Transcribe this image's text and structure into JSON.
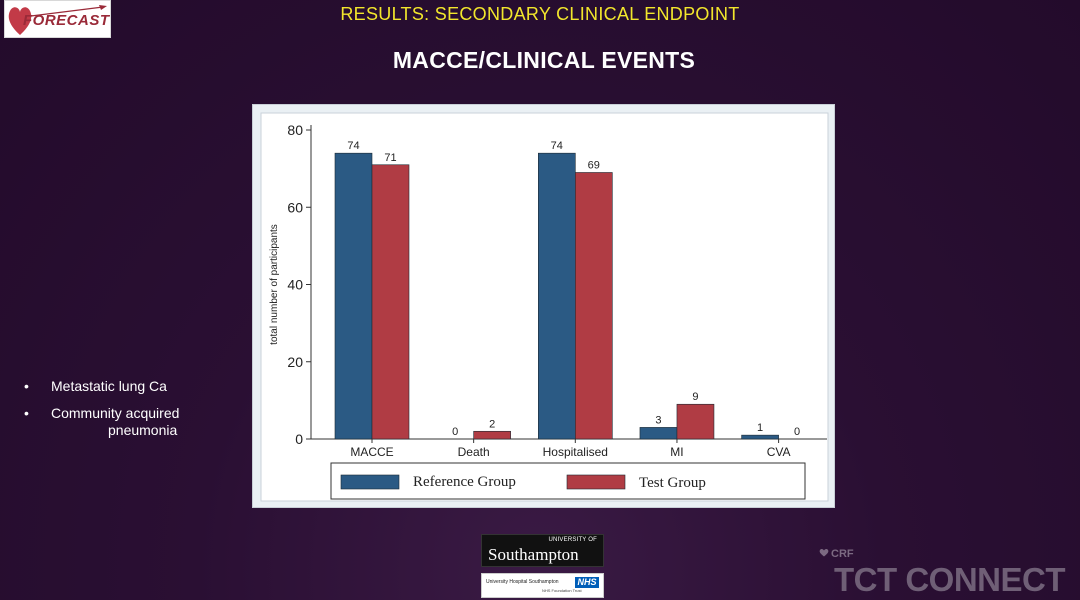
{
  "logo": {
    "text": "FORECAST"
  },
  "header": {
    "results_title": "RESULTS:  SECONDARY CLINICAL ENDPOINT",
    "main_title": "MACCE/CLINICAL EVENTS"
  },
  "bullets": [
    {
      "line1": "Metastatic lung Ca",
      "line2": ""
    },
    {
      "line1": "Community acquired",
      "line2": "pneumonia"
    }
  ],
  "chart_data": {
    "type": "bar",
    "categories": [
      "MACCE",
      "Death",
      "Hospitalised",
      "MI",
      "CVA"
    ],
    "series": [
      {
        "name": "Reference Group",
        "values": [
          74,
          0,
          74,
          3,
          1
        ],
        "color": "#2b5a84"
      },
      {
        "name": "Test Group",
        "values": [
          71,
          2,
          69,
          9,
          0
        ],
        "color": "#b03c44"
      }
    ],
    "ylabel": "total number of participants",
    "xlabel": "",
    "ylim": [
      0,
      80
    ],
    "yticks": [
      0,
      20,
      40,
      60,
      80
    ],
    "legend_position": "bottom",
    "grid": false
  },
  "footer": {
    "university_small": "UNIVERSITY OF",
    "university_name": "Southampton",
    "hospital_name": "University Hospital Southampton",
    "hospital_sub": "NHS Foundation Trust",
    "nhs_badge": "NHS",
    "crf": "CRF",
    "tct": "TCT CONNECT"
  },
  "colors": {
    "background": "#2a0f33",
    "title_yellow": "#f2e62c",
    "chart_bg": "#eaf0f4"
  }
}
